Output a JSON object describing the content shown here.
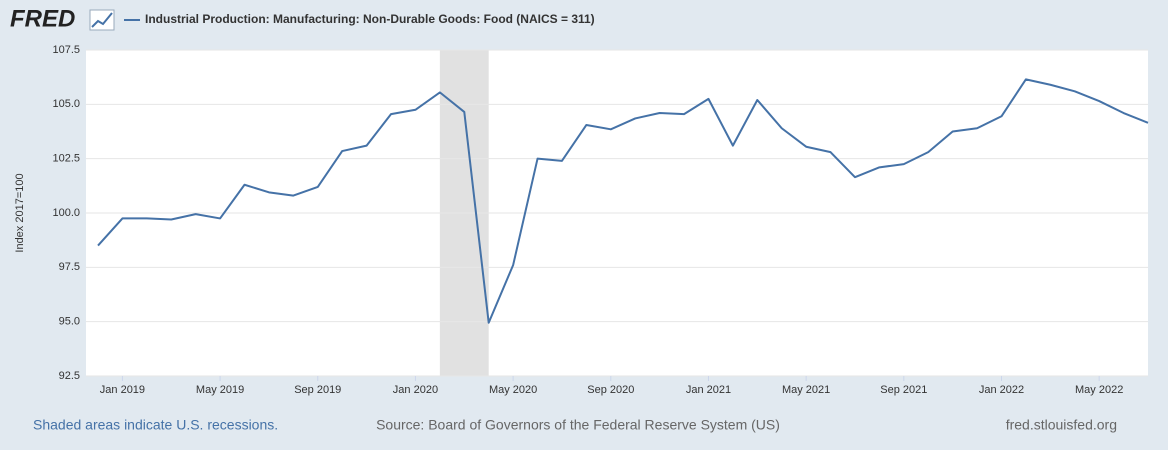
{
  "logo": "FRED",
  "chart_data": {
    "type": "line",
    "y_label": "Index 2017=100",
    "x": [
      "2018-12",
      "2019-01",
      "2019-02",
      "2019-03",
      "2019-04",
      "2019-05",
      "2019-06",
      "2019-07",
      "2019-08",
      "2019-09",
      "2019-10",
      "2019-11",
      "2019-12",
      "2020-01",
      "2020-02",
      "2020-03",
      "2020-04",
      "2020-05",
      "2020-06",
      "2020-07",
      "2020-08",
      "2020-09",
      "2020-10",
      "2020-11",
      "2020-12",
      "2021-01",
      "2021-02",
      "2021-03",
      "2021-04",
      "2021-05",
      "2021-06",
      "2021-07",
      "2021-08",
      "2021-09",
      "2021-10",
      "2021-11",
      "2021-12",
      "2022-01",
      "2022-02",
      "2022-03",
      "2022-04",
      "2022-05",
      "2022-06",
      "2022-07"
    ],
    "series": [
      {
        "name": "Industrial Production: Manufacturing: Non-Durable Goods: Food (NAICS = 311)",
        "color": "#4572a7",
        "values": [
          98.5,
          99.75,
          99.75,
          99.7,
          99.95,
          99.75,
          101.3,
          100.95,
          100.8,
          101.2,
          102.85,
          103.1,
          104.55,
          104.75,
          105.55,
          104.65,
          94.95,
          97.6,
          102.5,
          102.4,
          104.05,
          103.85,
          104.35,
          104.6,
          104.55,
          105.25,
          103.1,
          105.2,
          103.9,
          103.05,
          102.8,
          101.65,
          102.1,
          102.25,
          102.8,
          103.75,
          103.9,
          104.45,
          106.15,
          105.9,
          105.6,
          105.15,
          104.6,
          104.15
        ]
      }
    ],
    "ylim": [
      92.5,
      107.5
    ],
    "yticks": [
      92.5,
      {
        "value": 95,
        "label": "95.0"
      },
      97.5,
      {
        "value": 100,
        "label": "100.0"
      },
      102.5,
      {
        "value": 105,
        "label": "105.0"
      },
      107.5
    ],
    "xticks": [
      {
        "value": "2019-01",
        "label": "Jan 2019"
      },
      {
        "value": "2019-05",
        "label": "May 2019"
      },
      {
        "value": "2019-09",
        "label": "Sep 2019"
      },
      {
        "value": "2020-01",
        "label": "Jan 2020"
      },
      {
        "value": "2020-05",
        "label": "May 2020"
      },
      {
        "value": "2020-09",
        "label": "Sep 2020"
      },
      {
        "value": "2021-01",
        "label": "Jan 2021"
      },
      {
        "value": "2021-05",
        "label": "May 2021"
      },
      {
        "value": "2021-09",
        "label": "Sep 2021"
      },
      {
        "value": "2022-01",
        "label": "Jan 2022"
      },
      {
        "value": "2022-05",
        "label": "May 2022"
      }
    ],
    "recessions": [
      {
        "start": "2020-02",
        "end": "2020-04"
      }
    ],
    "grid": true
  },
  "footer": {
    "recession_note": "Shaded areas indicate U.S. recessions.",
    "source": "Source: Board of Governors of the Federal Reserve System (US)",
    "site": "fred.stlouisfed.org"
  }
}
